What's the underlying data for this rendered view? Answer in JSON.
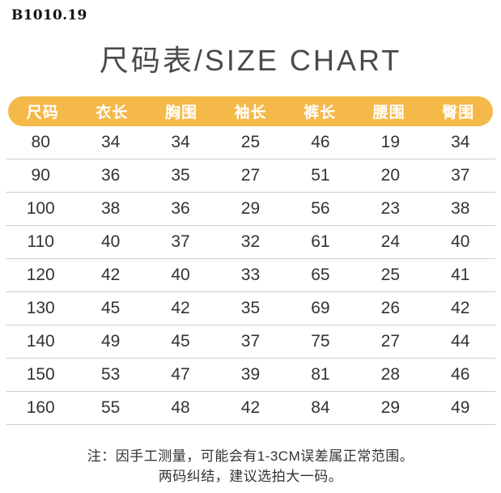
{
  "product_code": "B1010.19",
  "title": "尺码表/SIZE CHART",
  "chart_data": {
    "type": "table",
    "title": "尺码表/SIZE CHART",
    "columns": [
      "尺码",
      "衣长",
      "胸围",
      "袖长",
      "裤长",
      "腰围",
      "臀围"
    ],
    "rows": [
      [
        "80",
        "34",
        "34",
        "25",
        "46",
        "19",
        "34"
      ],
      [
        "90",
        "36",
        "35",
        "27",
        "51",
        "20",
        "37"
      ],
      [
        "100",
        "38",
        "36",
        "29",
        "56",
        "23",
        "38"
      ],
      [
        "110",
        "40",
        "37",
        "32",
        "61",
        "24",
        "40"
      ],
      [
        "120",
        "42",
        "40",
        "33",
        "65",
        "25",
        "41"
      ],
      [
        "130",
        "45",
        "42",
        "35",
        "69",
        "26",
        "42"
      ],
      [
        "140",
        "49",
        "45",
        "37",
        "75",
        "27",
        "44"
      ],
      [
        "150",
        "53",
        "47",
        "39",
        "81",
        "28",
        "46"
      ],
      [
        "160",
        "55",
        "48",
        "42",
        "84",
        "29",
        "49"
      ]
    ]
  },
  "note": {
    "line1": "注：因手工测量，可能会有1-3CM误差属正常范围。",
    "line2": "两码纠结，建议选拍大一码。"
  },
  "colors": {
    "header_bg": "#F5B94A",
    "header_text": "#FFFFFF",
    "title_text": "#4A4A4A",
    "body_text": "#333333",
    "divider": "#CFCFCF"
  }
}
